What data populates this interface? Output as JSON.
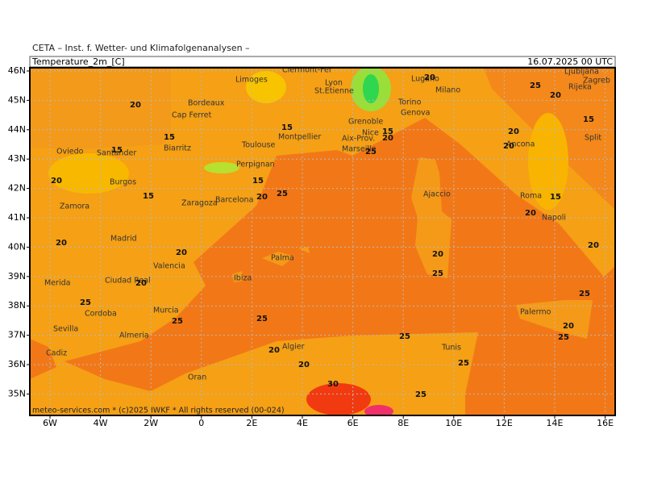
{
  "header": {
    "source": "CETA – Inst. f. Wetter- und Klimafolgenanalysen –",
    "variable": "Temperature_2m_[C]",
    "valid_time": "16.07.2025 00 UTC"
  },
  "axes": {
    "latitude": [
      "46N",
      "45N",
      "44N",
      "43N",
      "42N",
      "41N",
      "40N",
      "39N",
      "38N",
      "37N",
      "36N",
      "35N"
    ],
    "longitude": [
      "6W",
      "4W",
      "2W",
      "0",
      "2E",
      "4E",
      "6E",
      "8E",
      "10E",
      "12E",
      "14E",
      "16E"
    ]
  },
  "cities": [
    "Clermont-Fer",
    "Limoges",
    "Lyon",
    "St.Etienne",
    "Grenoble",
    "Lugano",
    "Torino",
    "Milano",
    "Genova",
    "Bordeaux",
    "Cap Ferret",
    "Montpellier",
    "Toulouse",
    "Nice",
    "Aix-Prov.",
    "Marseille",
    "Biarritz",
    "Perpignan",
    "Oviedo",
    "Santander",
    "Burgos",
    "Zaragoza",
    "Barcelona",
    "Zamora",
    "Madrid",
    "Valencia",
    "Palma",
    "Merida",
    "Ciudad Real",
    "Ibiza",
    "Murcia",
    "Cordoba",
    "Sevilla",
    "Almeria",
    "Cadiz",
    "Oran",
    "Algier",
    "Tunis",
    "Ajaccio",
    "Roma",
    "Napoli",
    "Palermo",
    "Ancona",
    "Ljubljana",
    "Zagreb",
    "Rijeka",
    "Split"
  ],
  "isotherm_labels": [
    20,
    15,
    15,
    20,
    15,
    20,
    20,
    20,
    25,
    25,
    25,
    20,
    20,
    30,
    25,
    25,
    25,
    25,
    20,
    20,
    25,
    15,
    15,
    25,
    15,
    20,
    20,
    25,
    20,
    15,
    20,
    20,
    20,
    15,
    20,
    25,
    20,
    25
  ],
  "footer": "meteo-services.com * (c)2025 IWKF * All rights reserved (00-024)"
}
